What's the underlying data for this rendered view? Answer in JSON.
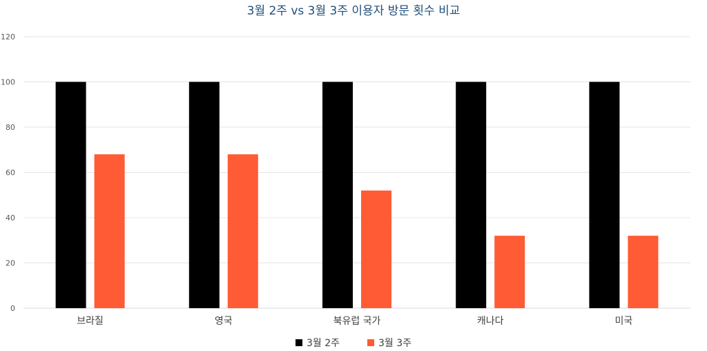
{
  "chart_data": {
    "type": "bar",
    "title": "3월 2주 vs 3월 3주 이용자 방문 횟수 비교",
    "categories": [
      "브라질",
      "영국",
      "북유럽 국가",
      "캐나다",
      "미국"
    ],
    "series": [
      {
        "name": "3월 2주",
        "color": "#000000",
        "values": [
          100,
          100,
          100,
          100,
          100
        ]
      },
      {
        "name": "3월 3주",
        "color": "#FF5B35",
        "values": [
          68,
          68,
          52,
          32,
          32
        ]
      }
    ],
    "ylim": [
      0,
      120
    ],
    "yticks": [
      0,
      20,
      40,
      60,
      80,
      100,
      120
    ],
    "xlabel": "",
    "ylabel": "",
    "grid": true,
    "legend": "bottom"
  }
}
